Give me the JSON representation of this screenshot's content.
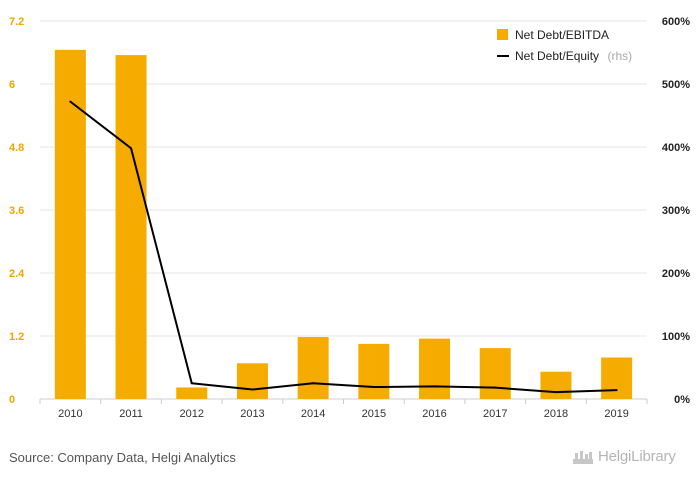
{
  "chart_data": {
    "type": "bar",
    "categories": [
      "2010",
      "2011",
      "2012",
      "2013",
      "2014",
      "2015",
      "2016",
      "2017",
      "2018",
      "2019"
    ],
    "series": [
      {
        "name": "Net Debt/EBITDA",
        "type": "bar",
        "axis": "left",
        "color": "#f5ab00",
        "values": [
          6.65,
          6.55,
          0.22,
          0.68,
          1.18,
          1.05,
          1.15,
          0.97,
          0.52,
          0.79
        ]
      },
      {
        "name": "Net Debt/Equity",
        "name_suffix": "(rhs)",
        "type": "line",
        "axis": "right",
        "color": "#000000",
        "values": [
          472,
          398,
          25,
          15,
          25,
          19,
          20,
          18,
          11,
          14
        ]
      }
    ],
    "left_axis": {
      "ylim": [
        0,
        7.2
      ],
      "ticks": [
        "0",
        "1.2",
        "2.4",
        "3.6",
        "4.8",
        "6",
        "7.2"
      ]
    },
    "right_axis": {
      "ylim": [
        0,
        600
      ],
      "ticks": [
        "0%",
        "100%",
        "200%",
        "300%",
        "400%",
        "500%",
        "600%"
      ]
    },
    "grid": true,
    "legend_position": "top-right"
  },
  "footer": {
    "source": "Source: Company Data, Helgi Analytics",
    "brand": "HelgiLibrary"
  }
}
